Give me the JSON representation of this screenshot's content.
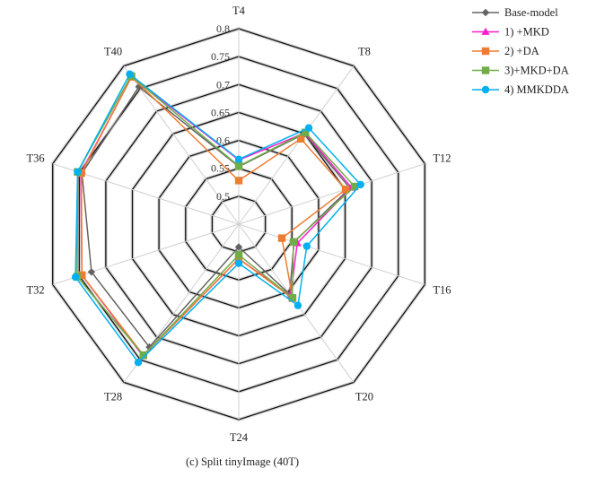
{
  "chart_data": {
    "type": "radar",
    "caption": "(c)  Split tinyImage  (40T)",
    "axes": [
      "T4",
      "T8",
      "T12",
      "T16",
      "T20",
      "T24",
      "T28",
      "T32",
      "T36",
      "T40"
    ],
    "ticks": [
      "0.5",
      "0.55",
      "0.6",
      "0.65",
      "0.7",
      "0.75",
      "0.8"
    ],
    "rmin": 0.45,
    "rmax": 0.8,
    "series": [
      {
        "name": "Base-model",
        "color": "#646464",
        "marker": "diamond",
        "values": [
          0.553,
          0.65,
          0.659,
          0.554,
          0.605,
          0.491,
          0.722,
          0.727,
          0.745,
          0.754
        ]
      },
      {
        "name": "1) +MKD",
        "color": "#ff1fd0",
        "marker": "triangle",
        "values": [
          0.565,
          0.652,
          0.662,
          0.56,
          0.608,
          0.512,
          0.742,
          0.745,
          0.747,
          0.776
        ]
      },
      {
        "name": "2) +DA",
        "color": "#ef7d31",
        "marker": "square",
        "values": [
          0.528,
          0.639,
          0.651,
          0.531,
          0.614,
          0.512,
          0.74,
          0.745,
          0.746,
          0.776
        ]
      },
      {
        "name": "3)+MKD+DA",
        "color": "#70ad47",
        "marker": "square",
        "values": [
          0.554,
          0.653,
          0.668,
          0.553,
          0.613,
          0.505,
          0.74,
          0.754,
          0.753,
          0.778
        ]
      },
      {
        "name": "4) MMKDDA",
        "color": "#00b0f0",
        "marker": "circle",
        "values": [
          0.566,
          0.663,
          0.679,
          0.578,
          0.63,
          0.52,
          0.756,
          0.757,
          0.753,
          0.782
        ]
      }
    ]
  }
}
